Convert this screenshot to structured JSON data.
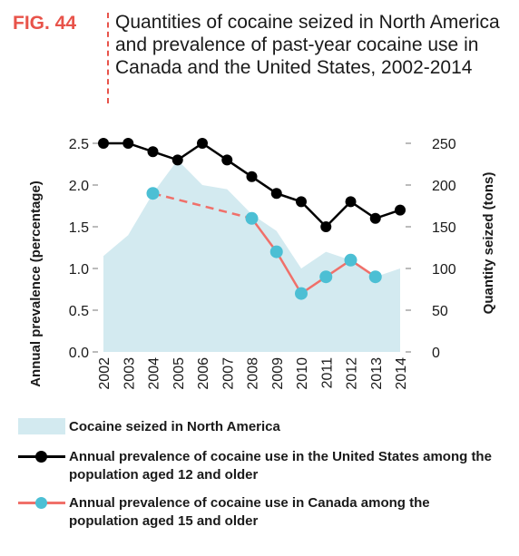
{
  "header": {
    "fig_label": "FIG. 44",
    "title": "Quantities of cocaine seized in North America and prevalence of past-year cocaine use in Canada and the United States, 2002-2014"
  },
  "colors": {
    "fig_label": "#e8534a",
    "area": "#d3eaf0",
    "us_line": "#000000",
    "canada_line": "#f0706a",
    "canada_marker": "#4cbfd4"
  },
  "chart_data": {
    "type": "line",
    "x": [
      "2002",
      "2003",
      "2004",
      "2005",
      "2006",
      "2007",
      "2008",
      "2009",
      "2010",
      "2011",
      "2012",
      "2013",
      "2014"
    ],
    "ylabel_left": "Annual prevalence (percentage)",
    "ylabel_right": "Quantity seized (tons)",
    "ylim_left": [
      0,
      2.5
    ],
    "ylim_right": [
      0,
      250
    ],
    "yticks_left": [
      "0.0",
      "0.5",
      "1.0",
      "1.5",
      "2.0",
      "2.5"
    ],
    "yticks_right": [
      "0",
      "50",
      "100",
      "150",
      "200",
      "250"
    ],
    "series": [
      {
        "name": "Cocaine seized in North America",
        "kind": "area",
        "axis": "right",
        "values": [
          115,
          140,
          190,
          230,
          200,
          195,
          165,
          145,
          100,
          120,
          110,
          90,
          100
        ]
      },
      {
        "name": "Annual prevalence of cocaine use in the United States among the population aged 12 and older",
        "kind": "line",
        "axis": "left",
        "values": [
          2.5,
          2.5,
          2.4,
          2.3,
          2.5,
          2.3,
          2.1,
          1.9,
          1.8,
          1.5,
          1.8,
          1.6,
          1.7
        ]
      },
      {
        "name": "Annual prevalence of cocaine use in Canada among the population aged 15 and older",
        "kind": "line",
        "axis": "left",
        "values": [
          null,
          null,
          1.9,
          null,
          null,
          null,
          1.6,
          1.2,
          0.7,
          0.9,
          1.1,
          0.9,
          null
        ],
        "dashed_gap": [
          2,
          6
        ]
      }
    ],
    "legend_position": "bottom"
  }
}
